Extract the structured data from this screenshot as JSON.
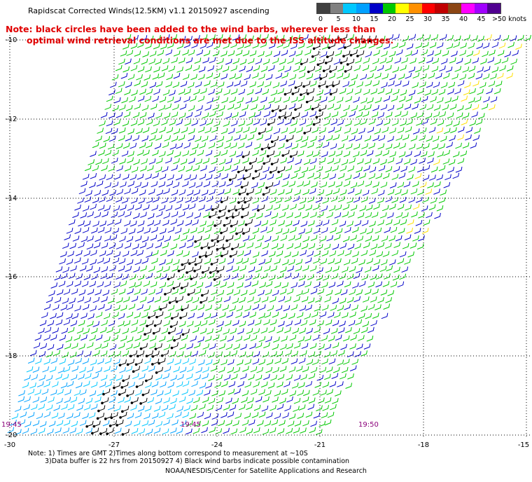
{
  "title": "Rapidscat Corrected Winds(12.5KM) v1.1 20150927 ascending",
  "note": {
    "line1": "Note: black circles have been added to the wind barbs, wherever less than",
    "line2": "optimal wind retrieval conditions are met due to the ISS altitude changes."
  },
  "legend": {
    "labels": [
      "0",
      "5",
      "10",
      "15",
      "20",
      "25",
      "30",
      "35",
      "40",
      "45",
      ">50 knots"
    ],
    "colors": [
      "#404040",
      "#808080",
      "#00c8ff",
      "#00a0ff",
      "#0000c8",
      "#00c800",
      "#ffff00",
      "#ff9000",
      "#ff0000",
      "#c00000",
      "#8b4513",
      "#ff00ff",
      "#a000ff",
      "#500090"
    ]
  },
  "axes": {
    "lat_labels": [
      "-10",
      "-12",
      "-14",
      "-16",
      "-18",
      "-20"
    ],
    "lon_labels": [
      "-30",
      "-27",
      "-24",
      "-21",
      "-18",
      "-15"
    ]
  },
  "times": [
    "19:45",
    "19:45",
    "19:50"
  ],
  "footer": {
    "note1": "Note: 1) Times are GMT 2)Times along bottom correspond to measurement at ~10S",
    "note2": "3)Data buffer is 22 hrs from 20150927 4) Black wind barbs indicate possible contamination",
    "credit": "NOAA/NESDIS/Center for Satellite Applications and Research"
  }
}
